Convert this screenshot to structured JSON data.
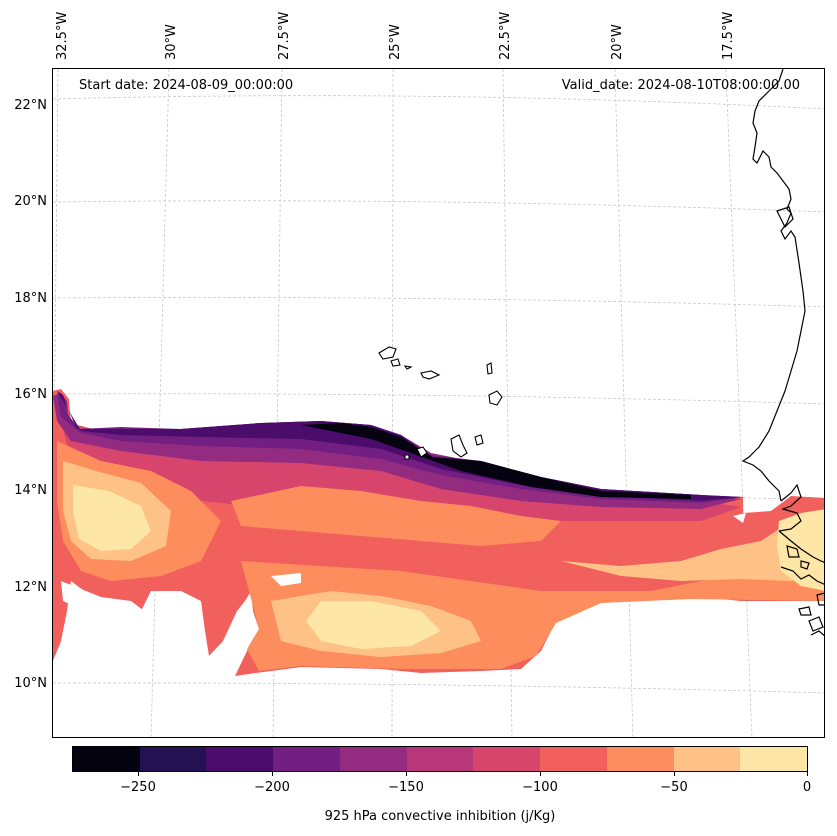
{
  "map": {
    "start_date": "Start date: 2024-08-09_00:00:00",
    "valid_date": "Valid_date: 2024-08-10T08:00:00.00",
    "lon_labels": [
      "32.5°W",
      "30°W",
      "27.5°W",
      "25°W",
      "22.5°W",
      "20°W",
      "17.5°W"
    ],
    "lat_labels": [
      "22°N",
      "20°N",
      "18°N",
      "16°N",
      "14°N",
      "12°N",
      "10°N"
    ],
    "variable": "925 hPa convective inhibition",
    "coastline_color": "#000000",
    "gridline_color": "#c8c8c8"
  },
  "colorbar": {
    "label": "925 hPa convective inhibition (j/Kg)",
    "tick_labels": [
      "−250",
      "−200",
      "−150",
      "−100",
      "−50",
      "0"
    ],
    "colors": [
      "#04030f",
      "#231151",
      "#4b0c6b",
      "#721f81",
      "#932b80",
      "#b73779",
      "#d8456c",
      "#f1605d",
      "#fd8d5c",
      "#fec287",
      "#fde6a6"
    ]
  }
}
